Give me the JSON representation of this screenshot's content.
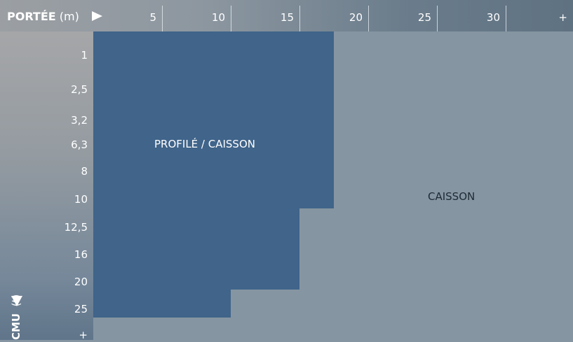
{
  "header": {
    "title": "PORTÉE",
    "unit": "(m)",
    "columns": [
      "5",
      "10",
      "15",
      "20",
      "25",
      "30",
      "+"
    ]
  },
  "axis_left": {
    "title": "CMU",
    "unit": "(t)",
    "rows": [
      "1",
      "2,5",
      "3,2",
      "6,3",
      "8",
      "10",
      "12,5",
      "16",
      "20",
      "25",
      "+"
    ]
  },
  "zones": {
    "profile_caisson": "PROFILÉ / CAISSON",
    "caisson": "CAISSON"
  },
  "colors": {
    "dark_zone": "#40648a",
    "light_zone": "#8595a1"
  }
}
